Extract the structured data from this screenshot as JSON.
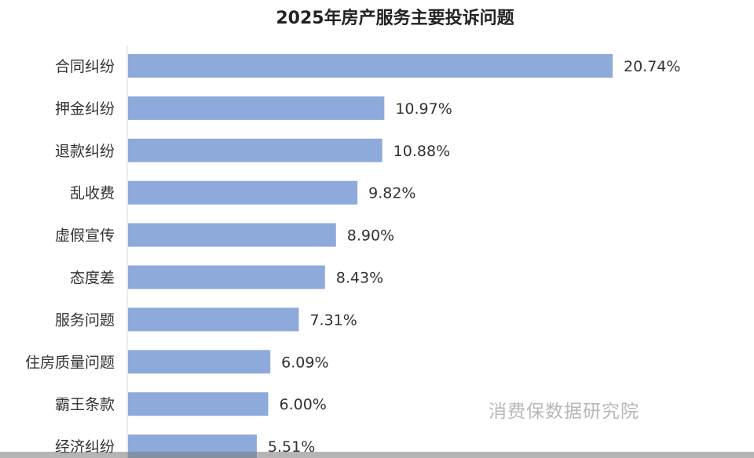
{
  "chart_data": {
    "type": "bar",
    "orientation": "horizontal",
    "title": "2025年房产服务主要投诉问题",
    "categories": [
      "合同纠纷",
      "押金纠纷",
      "退款纠纷",
      "乱收费",
      "虚假宣传",
      "态度差",
      "服务问题",
      "住房质量问题",
      "霸王条款",
      "经济纠纷"
    ],
    "values": [
      20.74,
      10.97,
      10.88,
      9.82,
      8.9,
      8.43,
      7.31,
      6.09,
      6.0,
      5.51
    ],
    "labels": [
      "20.74%",
      "10.97%",
      "10.88%",
      "9.82%",
      "8.90%",
      "8.43%",
      "7.31%",
      "6.09%",
      "6.00%",
      "5.51%"
    ],
    "xlabel": "",
    "ylabel": "",
    "xlim": [
      0,
      21.5
    ],
    "grid": false,
    "bar_color": "#8eaadb"
  },
  "watermark": "消费保数据研究院"
}
